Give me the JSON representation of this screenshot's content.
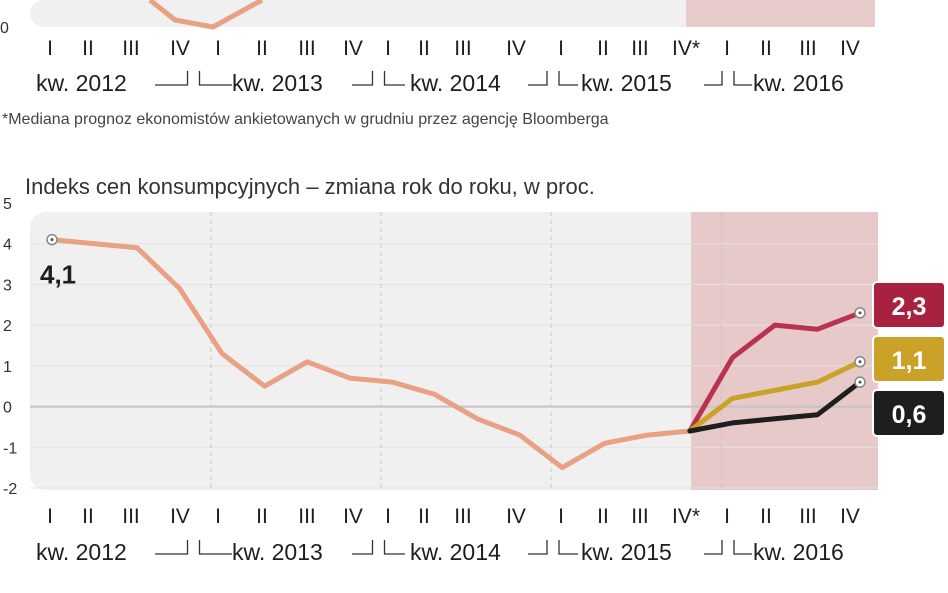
{
  "top_fragment": {
    "ytick": "0",
    "quarter_labels": [
      "I",
      "II",
      "III",
      "IV",
      "I",
      "II",
      "III",
      "IV",
      "I",
      "II",
      "III",
      "IV",
      "I",
      "II",
      "III",
      "IV*",
      "I",
      "II",
      "III",
      "IV"
    ],
    "year_labels": [
      "kw. 2012",
      "kw. 2013",
      "kw. 2014",
      "kw. 2015",
      "kw. 2016"
    ],
    "footnote": "*Mediana prognoz ekonomistów ankietowanych w grudniu przez agencję Bloomberga"
  },
  "chart_data": {
    "type": "line",
    "title": "Indeks cen konsumpcyjnych – zmiana rok do roku, w proc.",
    "xlabel": "",
    "ylabel": "",
    "ylim": [
      -2,
      5
    ],
    "yticks": [
      "5",
      "4",
      "3",
      "2",
      "1",
      "0",
      "-1",
      "-2"
    ],
    "categories": [
      "I",
      "II",
      "III",
      "IV",
      "I",
      "II",
      "III",
      "IV",
      "I",
      "II",
      "III",
      "IV",
      "I",
      "II",
      "III",
      "IV*",
      "I",
      "II",
      "III",
      "IV"
    ],
    "year_labels": [
      "kw. 2012",
      "kw. 2013",
      "kw. 2014",
      "kw. 2015",
      "kw. 2016"
    ],
    "forecast_from_index": 15,
    "series": [
      {
        "values": [
          4.1,
          4.0,
          3.9,
          2.9,
          1.3,
          0.5,
          1.1,
          0.7,
          0.6,
          0.3,
          -0.3,
          -0.7,
          -1.5,
          -0.9,
          -0.7,
          -0.6,
          null,
          null,
          null,
          null
        ],
        "color": "#e8a182"
      },
      {
        "values": [
          null,
          null,
          null,
          null,
          null,
          null,
          null,
          null,
          null,
          null,
          null,
          null,
          null,
          null,
          null,
          -0.6,
          1.2,
          2.0,
          1.9,
          2.3
        ],
        "color": "#b8334f"
      },
      {
        "values": [
          null,
          null,
          null,
          null,
          null,
          null,
          null,
          null,
          null,
          null,
          null,
          null,
          null,
          null,
          null,
          -0.6,
          0.2,
          0.4,
          0.6,
          1.1
        ],
        "color": "#c9a227"
      },
      {
        "values": [
          null,
          null,
          null,
          null,
          null,
          null,
          null,
          null,
          null,
          null,
          null,
          null,
          null,
          null,
          null,
          -0.6,
          -0.4,
          -0.3,
          -0.2,
          0.6
        ],
        "color": "#1e1e1e"
      }
    ],
    "annotations": {
      "first_value": "4,1",
      "end_values": [
        {
          "text": "2,3",
          "bg": "#a8213f"
        },
        {
          "text": "1,1",
          "bg": "#c9a227"
        },
        {
          "text": "0,6",
          "bg": "#1e1e1e"
        }
      ]
    },
    "grid": true,
    "forecast_shading_color": "#e7c9c9"
  }
}
